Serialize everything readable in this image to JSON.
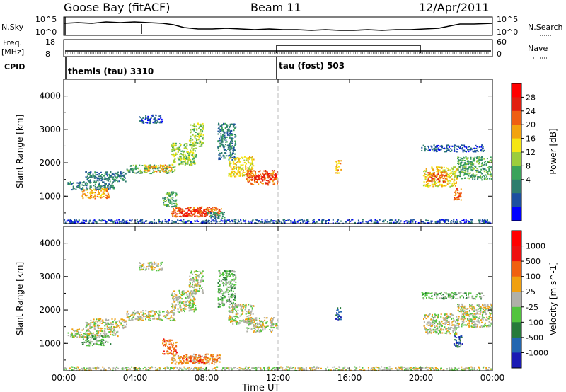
{
  "header": {
    "station": "Goose Bay (fitACF)",
    "beam": "Beam 11",
    "date": "12/Apr/2011"
  },
  "top_panels": {
    "nsky_label": "N.Sky",
    "nsky_ticks": [
      "10^5",
      "10^0"
    ],
    "nsearch_label": "N.Search",
    "nsearch_ticks": [
      "10^5",
      "10^0"
    ],
    "freq_label_1": "Freq.",
    "freq_label_2": "[MHz]",
    "freq_ticks": [
      "18",
      "8"
    ],
    "nave_label": "Nave",
    "nave_ticks": [
      "60",
      "0"
    ],
    "cpid_label": "CPID",
    "cpid_segments": [
      "themis (tau) 3310",
      "tau (fost) 503"
    ]
  },
  "chart_data": [
    {
      "type": "heatmap",
      "title": "",
      "xlabel": "Time UT",
      "ylabel": "Slant Range [km]",
      "x_ticks": [
        "00:00",
        "04:00",
        "08:00",
        "12:00",
        "16:00",
        "20:00",
        "00:00"
      ],
      "xlim_hours": [
        0,
        24
      ],
      "ylim": [
        180,
        4500
      ],
      "y_ticks": [
        1000,
        2000,
        3000,
        4000
      ],
      "colorbar_label": "Power [dB]",
      "colorbar_ticks": [
        "28",
        "24",
        "20",
        "16",
        "12",
        "8",
        "4"
      ],
      "colors": [
        "#0000ff",
        "#1c4fa0",
        "#2e7d6e",
        "#3aa35a",
        "#9ccd3c",
        "#f5e614",
        "#f3a30e",
        "#ef5f12",
        "#e11e10",
        "#ff0000"
      ],
      "regions": [
        {
          "t0": 0.2,
          "t1": 2.8,
          "r0": 1200,
          "r1": 1450,
          "v": 2
        },
        {
          "t0": 1.0,
          "t1": 2.5,
          "r0": 950,
          "r1": 1250,
          "v": 6
        },
        {
          "t0": 1.2,
          "t1": 3.5,
          "r0": 1450,
          "r1": 1750,
          "v": 2
        },
        {
          "t0": 3.5,
          "t1": 6.2,
          "r0": 1700,
          "r1": 1950,
          "v": 3
        },
        {
          "t0": 4.5,
          "t1": 6.0,
          "r0": 1750,
          "r1": 1950,
          "v": 6
        },
        {
          "t0": 6.0,
          "t1": 7.4,
          "r0": 1950,
          "r1": 2600,
          "v": 4
        },
        {
          "t0": 7.0,
          "t1": 7.8,
          "r0": 2500,
          "r1": 3200,
          "v": 4
        },
        {
          "t0": 4.2,
          "t1": 5.5,
          "r0": 3200,
          "r1": 3450,
          "v": 1
        },
        {
          "t0": 5.5,
          "t1": 6.3,
          "r0": 700,
          "r1": 1150,
          "v": 3
        },
        {
          "t0": 6.0,
          "t1": 8.8,
          "r0": 400,
          "r1": 700,
          "v": 7
        },
        {
          "t0": 6.5,
          "t1": 8.0,
          "r0": 420,
          "r1": 620,
          "v": 8
        },
        {
          "t0": 8.0,
          "t1": 9.0,
          "r0": 350,
          "r1": 550,
          "v": 2
        },
        {
          "t0": 8.6,
          "t1": 9.6,
          "r0": 2100,
          "r1": 3200,
          "v": 2
        },
        {
          "t0": 9.2,
          "t1": 10.6,
          "r0": 1600,
          "r1": 2200,
          "v": 5
        },
        {
          "t0": 10.2,
          "t1": 11.95,
          "r0": 1350,
          "r1": 1800,
          "v": 7
        },
        {
          "t0": 10.8,
          "t1": 11.9,
          "r0": 1500,
          "r1": 1700,
          "v": 8
        },
        {
          "t0": 15.2,
          "t1": 15.5,
          "r0": 1700,
          "r1": 2100,
          "v": 6
        },
        {
          "t0": 20.1,
          "t1": 22.0,
          "r0": 1300,
          "r1": 1900,
          "v": 5
        },
        {
          "t0": 20.3,
          "t1": 21.4,
          "r0": 1450,
          "r1": 1750,
          "v": 7
        },
        {
          "t0": 22.0,
          "t1": 24.0,
          "r0": 1500,
          "r1": 2200,
          "v": 3
        },
        {
          "t0": 21.8,
          "t1": 22.3,
          "r0": 900,
          "r1": 1250,
          "v": 7
        },
        {
          "t0": 20.0,
          "t1": 23.5,
          "r0": 2350,
          "r1": 2550,
          "v": 1
        },
        {
          "t0": 0.0,
          "t1": 24.0,
          "r0": 200,
          "r1": 320,
          "v": 1
        }
      ]
    },
    {
      "type": "heatmap",
      "title": "",
      "xlabel": "Time UT",
      "ylabel": "Slant Range [km]",
      "x_ticks": [
        "00:00",
        "04:00",
        "08:00",
        "12:00",
        "16:00",
        "20:00",
        "00:00"
      ],
      "xlim_hours": [
        0,
        24
      ],
      "ylim": [
        180,
        4500
      ],
      "y_ticks": [
        1000,
        2000,
        3000,
        4000
      ],
      "colorbar_label": "Velocity [m s^-1]",
      "colorbar_ticks": [
        "1000",
        "500",
        "100",
        "25",
        "-25",
        "-100",
        "-500",
        "-1000"
      ],
      "colors": [
        "#1a1ab4",
        "#2266b0",
        "#267a3a",
        "#52c43e",
        "#b0b0a8",
        "#f0a010",
        "#f06010",
        "#ee1010",
        "#ff0000"
      ],
      "regions": [
        {
          "t0": 0.2,
          "t1": 3.0,
          "r0": 1200,
          "r1": 1450,
          "v": 4
        },
        {
          "t0": 1.0,
          "t1": 2.6,
          "r0": 950,
          "r1": 1250,
          "v": 3
        },
        {
          "t0": 1.2,
          "t1": 3.5,
          "r0": 1450,
          "r1": 1750,
          "v": 4
        },
        {
          "t0": 3.5,
          "t1": 6.2,
          "r0": 1700,
          "r1": 2000,
          "v": 4
        },
        {
          "t0": 6.0,
          "t1": 7.4,
          "r0": 1950,
          "r1": 2600,
          "v": 4
        },
        {
          "t0": 7.0,
          "t1": 7.8,
          "r0": 2500,
          "r1": 3200,
          "v": 4
        },
        {
          "t0": 4.2,
          "t1": 5.5,
          "r0": 3200,
          "r1": 3450,
          "v": 4
        },
        {
          "t0": 5.5,
          "t1": 6.3,
          "r0": 700,
          "r1": 1150,
          "v": 6
        },
        {
          "t0": 6.0,
          "t1": 8.8,
          "r0": 400,
          "r1": 700,
          "v": 5
        },
        {
          "t0": 6.5,
          "t1": 8.0,
          "r0": 420,
          "r1": 620,
          "v": 6
        },
        {
          "t0": 8.6,
          "t1": 9.6,
          "r0": 2100,
          "r1": 3200,
          "v": 3
        },
        {
          "t0": 9.2,
          "t1": 10.6,
          "r0": 1600,
          "r1": 2200,
          "v": 4
        },
        {
          "t0": 10.2,
          "t1": 11.95,
          "r0": 1350,
          "r1": 1800,
          "v": 4
        },
        {
          "t0": 15.2,
          "t1": 15.5,
          "r0": 1700,
          "r1": 2100,
          "v": 1
        },
        {
          "t0": 20.1,
          "t1": 22.0,
          "r0": 1300,
          "r1": 1900,
          "v": 4
        },
        {
          "t0": 22.0,
          "t1": 24.0,
          "r0": 1500,
          "r1": 2200,
          "v": 4
        },
        {
          "t0": 21.8,
          "t1": 22.3,
          "r0": 900,
          "r1": 1250,
          "v": 1
        },
        {
          "t0": 20.0,
          "t1": 23.5,
          "r0": 2350,
          "r1": 2550,
          "v": 3
        },
        {
          "t0": 0.0,
          "t1": 24.0,
          "r0": 200,
          "r1": 320,
          "v": 4
        }
      ]
    }
  ]
}
